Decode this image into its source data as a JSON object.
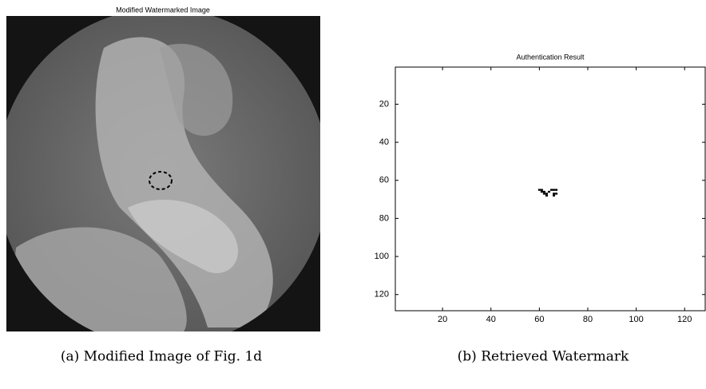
{
  "panel_a": {
    "title": "Modified Watermarked Image",
    "caption": "(a) Modified Image of Fig. 1d"
  },
  "chart_data": {
    "type": "image",
    "title": "Authentication Result",
    "caption": "(b) Retrieved Watermark",
    "xlim": [
      0.5,
      128.5
    ],
    "ylim": [
      0.5,
      128.5
    ],
    "y_reversed": true,
    "xticks": [
      20,
      40,
      60,
      80,
      100,
      120
    ],
    "yticks": [
      20,
      40,
      60,
      80,
      100,
      120
    ],
    "color": "#000000",
    "x": [
      60,
      61,
      65,
      66,
      67,
      61,
      62,
      64,
      62,
      63,
      66,
      67,
      63,
      66
    ],
    "values": [
      65,
      65,
      65,
      65,
      65,
      66,
      66,
      66,
      67,
      67,
      67,
      67,
      68,
      68
    ]
  }
}
